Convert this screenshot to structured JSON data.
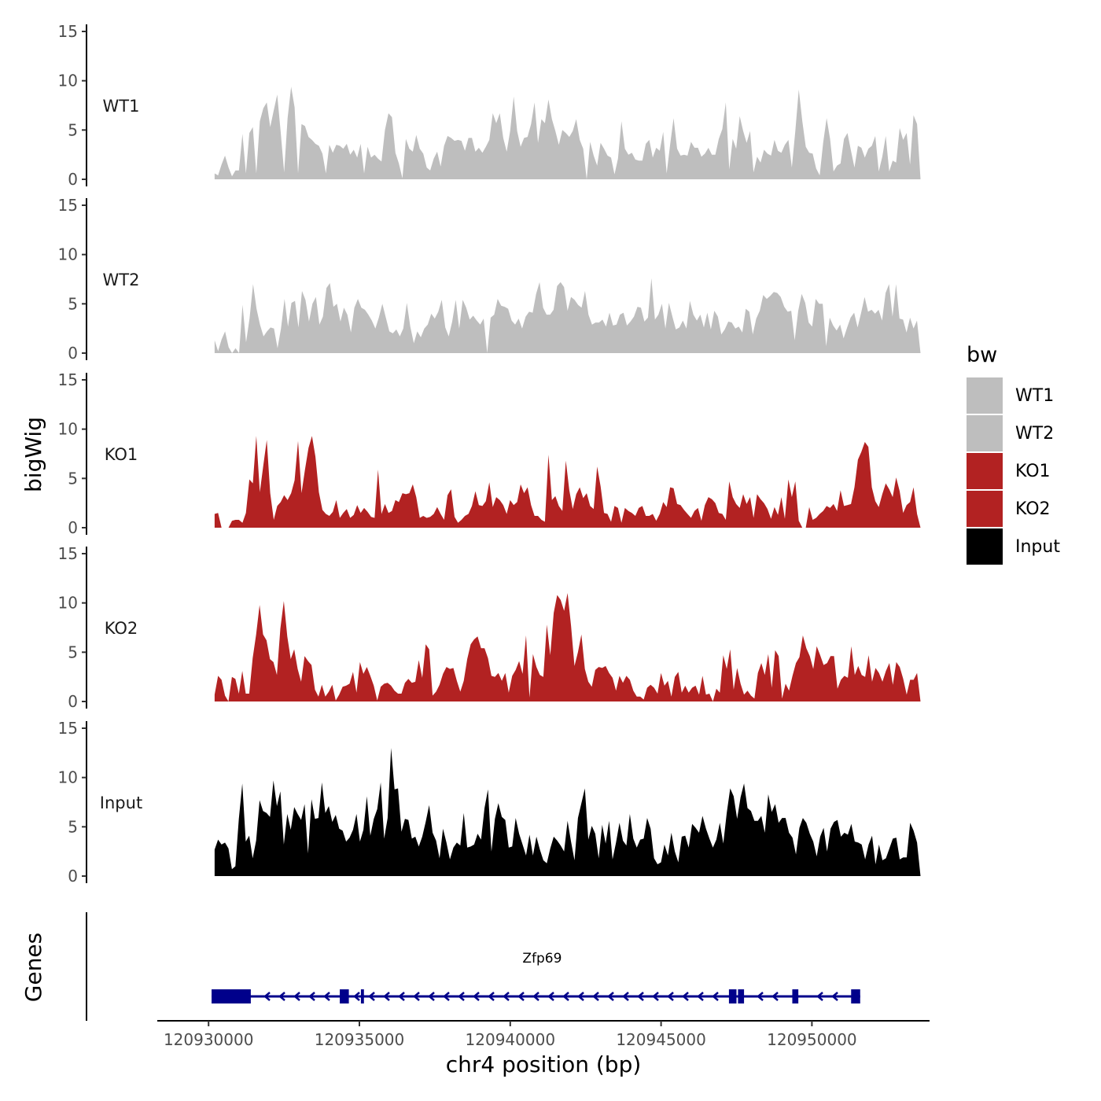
{
  "chart_data": {
    "type": "area",
    "ylabel": "bigWig",
    "xlabel": "chr4 position (bp)",
    "region": {
      "chrom": "chr4",
      "start": 120930200,
      "end": 120953600
    },
    "xlim": [
      120928300,
      120953900
    ],
    "x_ticks": [
      120930000,
      120935000,
      120940000,
      120945000,
      120950000
    ],
    "x_tick_labels": [
      "120930000",
      "120935000",
      "120940000",
      "120945000",
      "120950000"
    ],
    "ylim": [
      0,
      15
    ],
    "y_ticks": [
      0,
      5,
      10,
      15
    ],
    "y_tick_labels": [
      "0",
      "5",
      "10",
      "15"
    ],
    "legend": {
      "title": "bw",
      "entries": [
        {
          "label": "WT1",
          "color": "#BEBEBE"
        },
        {
          "label": "WT2",
          "color": "#BEBEBE"
        },
        {
          "label": "KO1",
          "color": "#B22222"
        },
        {
          "label": "KO2",
          "color": "#B22222"
        },
        {
          "label": "Input",
          "color": "#000000"
        }
      ]
    },
    "series": [
      {
        "name": "WT1",
        "color": "#BEBEBE",
        "values": [
          0.6,
          0.4,
          1.5,
          2.4,
          1.2,
          0.3,
          0.9,
          0.9,
          4.6,
          0.6,
          4.7,
          5.3,
          0.6,
          5.9,
          7.2,
          7.8,
          5.3,
          7.0,
          8.6,
          4.8,
          0.7,
          6.2,
          9.4,
          7.3,
          0.6,
          5.6,
          5.4,
          4.3,
          4.0,
          3.6,
          3.4,
          2.6,
          0.6,
          3.5,
          2.7,
          3.5,
          3.4,
          3.1,
          3.6,
          2.5,
          3.0,
          2.2,
          3.6,
          0.6,
          3.3,
          2.2,
          2.5,
          2.1,
          1.8,
          5.0,
          6.7,
          6.3,
          2.7,
          1.6,
          0.1,
          4.1,
          3.1,
          2.8,
          4.5,
          3.1,
          2.6,
          1.2,
          0.9,
          2.1,
          2.8,
          1.3,
          3.4,
          4.4,
          4.2,
          3.9,
          4.0,
          3.9,
          2.9,
          4.2,
          4.2,
          2.8,
          3.2,
          2.7,
          3.3,
          4.0,
          6.7,
          5.7,
          6.7,
          4.2,
          2.8,
          4.9,
          8.4,
          4.9,
          3.3,
          4.2,
          4.3,
          5.6,
          7.8,
          3.7,
          6.1,
          5.7,
          8.1,
          6.1,
          4.9,
          3.5,
          5.0,
          4.7,
          4.3,
          4.9,
          6.1,
          4.0,
          3.1,
          0.0,
          3.8,
          2.4,
          1.4,
          3.7,
          3.1,
          2.4,
          2.2,
          0.5,
          2.1,
          5.9,
          3.1,
          2.5,
          2.7,
          2.0,
          1.9,
          1.9,
          3.6,
          4.0,
          2.2,
          3.2,
          2.9,
          4.8,
          0.6,
          3.5,
          6.2,
          3.1,
          2.4,
          2.5,
          2.4,
          3.8,
          3.2,
          3.2,
          2.3,
          2.6,
          3.2,
          2.5,
          2.5,
          4.1,
          5.1,
          7.8,
          1.0,
          4.1,
          3.1,
          6.4,
          4.9,
          3.7,
          4.9,
          0.7,
          2.3,
          1.7,
          3.0,
          2.6,
          2.4,
          4.0,
          2.9,
          2.7,
          3.5,
          4.0,
          1.2,
          4.9,
          9.1,
          5.9,
          3.3,
          2.7,
          2.6,
          1.1,
          0.4,
          3.7,
          6.2,
          4.1,
          0.8,
          1.4,
          1.6,
          4.1,
          4.7,
          2.9,
          1.2,
          3.4,
          3.2,
          2.2,
          3.1,
          3.4,
          4.4,
          0.8,
          2.3,
          4.4,
          0.8,
          1.9,
          1.7,
          5.2,
          4.0,
          4.7,
          1.5,
          6.5,
          5.6,
          0.0
        ]
      },
      {
        "name": "WT2",
        "color": "#BEBEBE",
        "values": [
          1.3,
          0.2,
          1.4,
          2.2,
          0.6,
          0.0,
          0.5,
          0.0,
          4.9,
          1.1,
          3.5,
          7.0,
          4.5,
          2.9,
          1.7,
          2.2,
          2.6,
          2.5,
          0.5,
          2.5,
          5.5,
          2.7,
          5.1,
          5.3,
          2.6,
          6.3,
          5.4,
          3.2,
          5.0,
          5.7,
          2.9,
          3.7,
          6.6,
          7.1,
          4.7,
          5.0,
          3.2,
          4.6,
          3.9,
          2.1,
          4.6,
          5.5,
          4.6,
          4.4,
          3.9,
          3.3,
          2.5,
          3.6,
          5.0,
          3.6,
          2.2,
          2.0,
          2.4,
          1.7,
          2.5,
          5.1,
          2.7,
          1.0,
          2.2,
          1.6,
          2.5,
          2.9,
          4.0,
          3.5,
          4.2,
          5.4,
          2.6,
          1.7,
          3.2,
          5.4,
          2.5,
          5.4,
          4.6,
          3.4,
          3.8,
          3.3,
          2.9,
          3.5,
          0.0,
          3.6,
          3.9,
          5.5,
          4.8,
          4.7,
          4.5,
          3.3,
          2.9,
          3.5,
          2.5,
          3.7,
          4.2,
          4.1,
          6.0,
          7.2,
          4.6,
          3.9,
          3.9,
          4.4,
          6.8,
          7.2,
          6.7,
          4.3,
          5.7,
          5.4,
          4.9,
          4.6,
          6.3,
          3.9,
          2.9,
          3.1,
          3.1,
          3.4,
          2.7,
          4.1,
          2.8,
          2.9,
          3.9,
          4.1,
          2.8,
          3.2,
          3.7,
          4.7,
          4.6,
          3.2,
          3.6,
          7.6,
          3.4,
          3.9,
          5.0,
          2.5,
          5.1,
          3.7,
          2.4,
          2.6,
          3.3,
          2.5,
          5.3,
          3.9,
          3.3,
          3.9,
          2.6,
          4.1,
          2.4,
          4.3,
          3.7,
          1.9,
          2.4,
          3.2,
          3.1,
          2.5,
          2.7,
          2.1,
          4.5,
          4.2,
          1.9,
          3.5,
          4.3,
          5.9,
          5.5,
          5.8,
          6.2,
          6.1,
          5.7,
          4.7,
          4.2,
          4.3,
          1.3,
          4.3,
          6.0,
          5.1,
          3.1,
          2.7,
          5.5,
          5.0,
          5.0,
          0.7,
          3.6,
          2.8,
          2.3,
          2.9,
          1.5,
          2.6,
          3.6,
          4.1,
          2.6,
          4.1,
          5.7,
          4.2,
          4.4,
          4.0,
          4.4,
          3.3,
          6.1,
          7.0,
          3.7,
          7.0,
          3.5,
          3.4,
          2.1,
          3.6,
          2.5,
          3.3,
          0.0
        ]
      },
      {
        "name": "KO1",
        "color": "#B22222",
        "values": [
          1.4,
          1.5,
          0.0,
          0.0,
          0.0,
          0.7,
          0.8,
          0.8,
          0.5,
          1.5,
          4.9,
          4.5,
          9.3,
          3.6,
          6.3,
          8.9,
          3.5,
          0.8,
          2.2,
          2.6,
          3.3,
          2.8,
          3.5,
          4.8,
          8.8,
          3.5,
          5.9,
          8.1,
          9.3,
          7.2,
          3.6,
          1.8,
          1.4,
          1.2,
          1.6,
          2.8,
          1.0,
          1.5,
          1.9,
          1.0,
          1.3,
          2.3,
          1.5,
          2.0,
          1.6,
          1.1,
          1.0,
          5.9,
          1.4,
          2.4,
          1.5,
          1.7,
          2.8,
          2.6,
          3.5,
          3.4,
          3.5,
          4.4,
          3.1,
          1.0,
          1.2,
          1.0,
          1.1,
          1.4,
          2.1,
          1.4,
          0.8,
          3.3,
          3.9,
          1.1,
          0.5,
          0.8,
          1.2,
          1.4,
          2.2,
          3.7,
          2.3,
          2.2,
          2.7,
          4.6,
          2.1,
          3.1,
          2.8,
          2.3,
          1.4,
          2.8,
          2.3,
          2.6,
          4.4,
          3.5,
          4.1,
          2.3,
          1.2,
          1.2,
          0.8,
          0.6,
          7.4,
          2.8,
          3.2,
          2.2,
          1.7,
          6.8,
          3.8,
          1.9,
          3.4,
          4.1,
          3.0,
          3.5,
          2.2,
          1.9,
          6.2,
          4.2,
          1.5,
          1.4,
          0.6,
          2.2,
          2.0,
          0.5,
          2.0,
          1.7,
          1.5,
          1.2,
          2.0,
          2.2,
          1.2,
          1.2,
          1.4,
          0.7,
          1.4,
          2.6,
          2.1,
          4.1,
          4.0,
          2.4,
          2.3,
          1.8,
          1.4,
          1.0,
          1.7,
          2.0,
          0.7,
          2.3,
          3.1,
          2.9,
          2.5,
          1.5,
          1.4,
          0.8,
          4.7,
          3.1,
          2.4,
          2.0,
          3.4,
          2.4,
          3.1,
          1.0,
          3.4,
          2.9,
          2.5,
          1.9,
          0.9,
          2.1,
          1.3,
          3.1,
          0.9,
          4.9,
          3.1,
          4.7,
          0.7,
          0.0,
          0.0,
          2.1,
          0.8,
          1.0,
          1.4,
          1.7,
          2.2,
          2.0,
          2.4,
          1.7,
          3.8,
          2.2,
          2.3,
          2.4,
          4.1,
          6.9,
          7.7,
          8.7,
          8.2,
          4.1,
          2.7,
          2.1,
          3.4,
          4.5,
          3.9,
          3.1,
          5.1,
          3.7,
          1.5,
          2.3,
          2.6,
          4.1,
          1.4,
          0.0
        ]
      },
      {
        "name": "KO2",
        "color": "#B22222",
        "values": [
          0.7,
          2.6,
          2.2,
          0.6,
          0.0,
          2.5,
          2.3,
          0.8,
          3.1,
          0.8,
          0.8,
          4.4,
          6.8,
          9.8,
          6.8,
          6.2,
          4.3,
          4.0,
          2.7,
          7.4,
          10.2,
          6.6,
          4.3,
          5.3,
          3.3,
          2.0,
          4.6,
          4.1,
          3.7,
          1.2,
          0.5,
          1.7,
          0.5,
          1.0,
          1.7,
          0.1,
          0.7,
          1.5,
          1.6,
          1.8,
          3.0,
          0.9,
          4.0,
          2.8,
          3.5,
          2.6,
          1.6,
          0.1,
          1.5,
          1.8,
          1.9,
          1.6,
          1.1,
          0.8,
          0.8,
          1.9,
          2.3,
          1.9,
          2.0,
          4.2,
          2.4,
          5.8,
          5.3,
          0.6,
          1.0,
          1.7,
          2.8,
          3.5,
          3.3,
          3.4,
          2.1,
          1.0,
          2.1,
          4.3,
          5.8,
          6.3,
          6.6,
          5.4,
          5.4,
          4.4,
          2.6,
          2.5,
          2.9,
          2.1,
          2.9,
          0.9,
          2.6,
          3.2,
          4.1,
          2.8,
          6.7,
          0.4,
          4.8,
          3.5,
          2.7,
          2.5,
          7.8,
          4.7,
          9.0,
          10.8,
          10.3,
          9.2,
          11.0,
          7.7,
          3.6,
          5.0,
          6.8,
          3.3,
          2.0,
          1.5,
          3.2,
          3.5,
          3.4,
          3.6,
          2.9,
          2.4,
          1.1,
          2.6,
          1.9,
          2.6,
          2.2,
          1.1,
          0.5,
          0.5,
          0.2,
          1.4,
          1.7,
          1.4,
          0.8,
          2.9,
          1.6,
          2.1,
          0.5,
          2.5,
          3.0,
          0.9,
          1.6,
          0.9,
          1.4,
          1.6,
          0.7,
          2.6,
          0.7,
          0.8,
          0.0,
          1.3,
          0.9,
          4.7,
          3.3,
          5.3,
          1.2,
          3.4,
          1.8,
          0.7,
          1.1,
          0.6,
          0.3,
          2.9,
          3.9,
          2.7,
          4.8,
          1.4,
          5.2,
          4.6,
          0.3,
          1.8,
          1.1,
          2.6,
          3.9,
          4.5,
          6.7,
          5.4,
          4.6,
          3.3,
          5.6,
          4.7,
          3.7,
          3.9,
          4.6,
          4.6,
          1.3,
          2.2,
          2.6,
          2.4,
          5.6,
          2.7,
          3.6,
          2.7,
          2.5,
          4.7,
          2.0,
          3.4,
          2.9,
          2.0,
          3.1,
          3.9,
          1.7,
          4.0,
          3.5,
          2.3,
          0.7,
          2.2,
          2.2,
          2.9,
          0.0
        ]
      },
      {
        "name": "Input",
        "color": "#000000",
        "values": [
          2.7,
          3.7,
          3.2,
          3.4,
          2.8,
          0.7,
          1.0,
          5.8,
          9.4,
          3.5,
          4.1,
          1.8,
          3.6,
          7.7,
          6.6,
          6.4,
          6.0,
          9.7,
          7.1,
          8.6,
          3.2,
          6.3,
          4.7,
          7.0,
          6.3,
          5.7,
          7.3,
          2.3,
          7.8,
          5.8,
          5.9,
          9.5,
          6.4,
          7.1,
          5.5,
          6.2,
          4.8,
          4.6,
          3.5,
          3.9,
          4.7,
          6.3,
          3.5,
          4.7,
          8.1,
          4.1,
          5.8,
          6.8,
          9.5,
          3.8,
          5.9,
          13.0,
          8.8,
          8.9,
          4.5,
          5.8,
          5.7,
          3.8,
          4.0,
          3.0,
          4.0,
          5.5,
          7.2,
          4.4,
          3.6,
          1.8,
          4.8,
          3.4,
          1.7,
          2.9,
          3.4,
          3.1,
          6.4,
          2.9,
          3.0,
          3.2,
          4.3,
          3.7,
          6.9,
          8.8,
          2.5,
          5.8,
          7.4,
          6.0,
          5.7,
          2.9,
          3.0,
          5.9,
          4.3,
          3.2,
          2.1,
          4.2,
          2.1,
          4.0,
          2.7,
          1.6,
          1.3,
          2.8,
          4.0,
          3.6,
          3.1,
          2.5,
          5.6,
          3.5,
          1.6,
          5.9,
          7.4,
          8.9,
          3.7,
          5.1,
          4.3,
          1.8,
          5.2,
          3.3,
          5.6,
          1.7,
          3.4,
          5.4,
          3.6,
          3.1,
          6.3,
          3.8,
          2.9,
          3.7,
          3.8,
          5.9,
          4.8,
          1.8,
          1.2,
          1.4,
          3.2,
          2.1,
          4.4,
          2.5,
          1.4,
          4.0,
          4.1,
          2.9,
          5.3,
          4.9,
          4.4,
          6.1,
          4.8,
          3.8,
          2.9,
          3.7,
          5.4,
          3.3,
          6.4,
          8.9,
          8.1,
          5.8,
          8.0,
          9.4,
          6.9,
          6.6,
          5.6,
          5.6,
          6.1,
          4.4,
          8.3,
          6.5,
          7.3,
          5.4,
          5.9,
          5.9,
          4.4,
          3.9,
          2.2,
          4.9,
          5.9,
          5.4,
          4.3,
          3.5,
          2.0,
          4.0,
          4.9,
          2.5,
          4.8,
          5.5,
          5.7,
          4.0,
          4.4,
          4.2,
          5.3,
          3.5,
          3.4,
          3.2,
          1.7,
          3.2,
          4.1,
          1.2,
          3.2,
          1.6,
          1.8,
          2.8,
          3.8,
          3.9,
          1.7,
          1.9,
          1.9,
          5.4,
          4.6,
          3.4,
          0.0
        ]
      }
    ],
    "genes_track": {
      "label": "Genes",
      "genes": [
        {
          "name": "Zfp69",
          "strand": "-",
          "start": 120930100,
          "end": 120951600,
          "exons": [
            {
              "start": 120930100,
              "end": 120931400
            },
            {
              "start": 120934350,
              "end": 120934650
            },
            {
              "start": 120935050,
              "end": 120935150
            },
            {
              "start": 120947250,
              "end": 120947500
            },
            {
              "start": 120947550,
              "end": 120947750
            },
            {
              "start": 120949350,
              "end": 120949550
            },
            {
              "start": 120951300,
              "end": 120951600
            }
          ]
        }
      ]
    }
  }
}
